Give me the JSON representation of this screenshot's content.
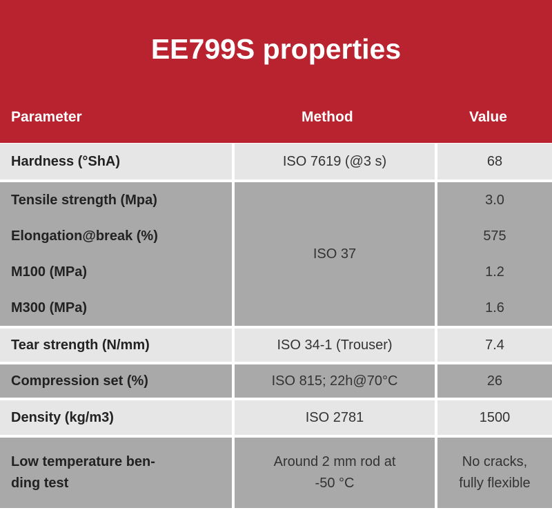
{
  "title": "EE799S properties",
  "columns": {
    "parameter": "Parameter",
    "method": "Method",
    "value": "Value"
  },
  "colors": {
    "header": "#b8232f",
    "light_row": "#e6e6e6",
    "dark_row": "#a9a9a9"
  },
  "rows": [
    {
      "parameter": "Hardness (°ShA)",
      "method": "ISO 7619 (@3 s)",
      "value": "68"
    },
    {
      "method": "ISO 37",
      "items": [
        {
          "parameter": "Tensile strength (Mpa)",
          "value": "3.0"
        },
        {
          "parameter": "Elongation@break (%)",
          "value": "575"
        },
        {
          "parameter": "M100 (MPa)",
          "value": "1.2"
        },
        {
          "parameter": "M300 (MPa)",
          "value": "1.6"
        }
      ]
    },
    {
      "parameter": "Tear strength (N/mm)",
      "method": "ISO 34-1 (Trouser)",
      "value": "7.4"
    },
    {
      "parameter": "Compression set (%)",
      "method": "ISO 815; 22h@70°C",
      "value": "26"
    },
    {
      "parameter": "Density (kg/m3)",
      "method": "ISO 2781",
      "value": "1500"
    },
    {
      "parameter_lines": [
        "Low temperature ben-",
        "ding test"
      ],
      "method_lines": [
        "Around 2 mm rod at",
        "-50 °C"
      ],
      "value_lines": [
        "No cracks,",
        "fully flexible"
      ]
    }
  ]
}
